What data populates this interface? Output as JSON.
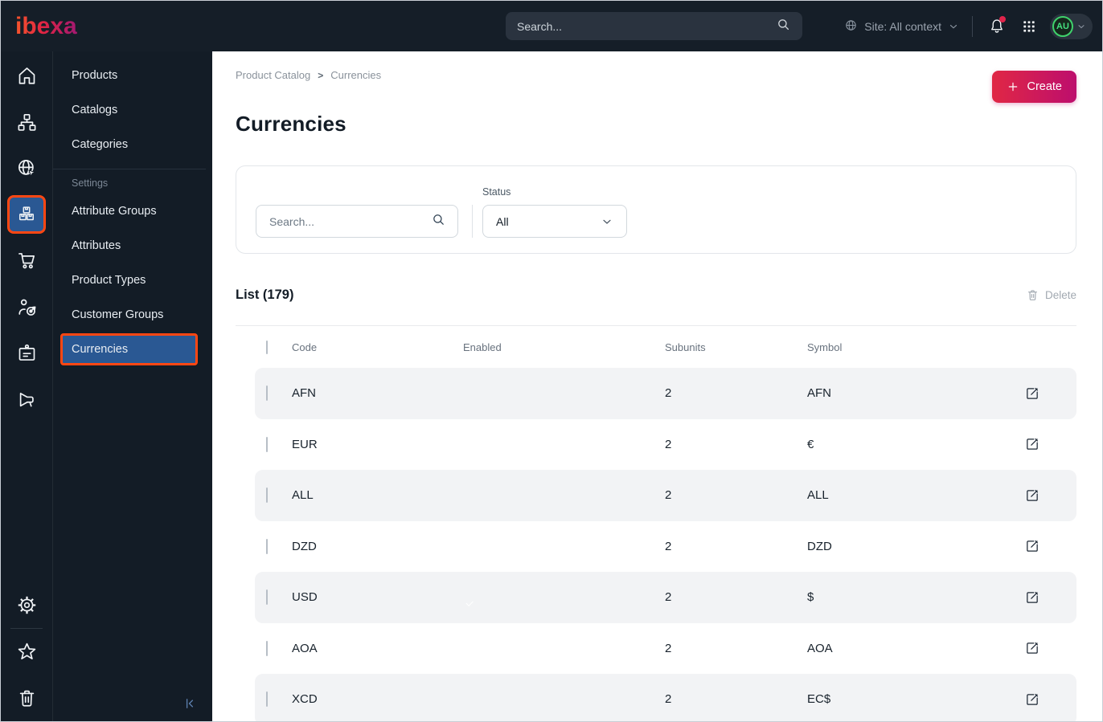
{
  "topbar": {
    "logo_text": "ibexa",
    "search_placeholder": "Search...",
    "site_label": "Site: All context",
    "avatar_initials": "AU"
  },
  "rail_icons": [
    "home-icon",
    "content-tree-icon",
    "site-globe-icon",
    "product-catalog-boxes-icon",
    "commerce-cart-icon",
    "personalization-target-icon",
    "customer-badge-icon",
    "marketing-megaphone-icon",
    "settings-gear-icon",
    "bookmarks-star-icon",
    "trash-icon"
  ],
  "menu": {
    "items": [
      "Products",
      "Catalogs",
      "Categories"
    ],
    "settings_label": "Settings",
    "settings_items": [
      "Attribute Groups",
      "Attributes",
      "Product Types",
      "Customer Groups",
      "Currencies"
    ],
    "active_item": "Currencies"
  },
  "main": {
    "breadcrumb": [
      "Product Catalog",
      "Currencies"
    ],
    "breadcrumb_separator": ">",
    "create_label": "Create",
    "title": "Currencies",
    "filters": {
      "search_placeholder": "Search...",
      "status_label": "Status",
      "status_value": "All"
    },
    "list": {
      "title": "List (179)",
      "delete_label": "Delete",
      "columns": [
        "Code",
        "Enabled",
        "Subunits",
        "Symbol"
      ],
      "rows": [
        {
          "code": "AFN",
          "enabled": false,
          "subunits": "2",
          "symbol": "AFN"
        },
        {
          "code": "EUR",
          "enabled": true,
          "subunits": "2",
          "symbol": "€"
        },
        {
          "code": "ALL",
          "enabled": false,
          "subunits": "2",
          "symbol": "ALL"
        },
        {
          "code": "DZD",
          "enabled": false,
          "subunits": "2",
          "symbol": "DZD"
        },
        {
          "code": "USD",
          "enabled": true,
          "subunits": "2",
          "symbol": "$"
        },
        {
          "code": "AOA",
          "enabled": false,
          "subunits": "2",
          "symbol": "AOA"
        },
        {
          "code": "XCD",
          "enabled": false,
          "subunits": "2",
          "symbol": "EC$"
        }
      ]
    }
  },
  "colors": {
    "topbar_bg": "#151e28",
    "sidebar_bg": "#131c26",
    "accent_orange": "#ff4713",
    "active_blue": "#2a5893",
    "create_gradient": [
      "#e02745",
      "#bd0e6d"
    ],
    "enabled_pink": "#dfa3ca",
    "row_stripe": "#f2f3f5",
    "avatar_green": "#3fd26b",
    "notification_red": "#e0244b"
  }
}
